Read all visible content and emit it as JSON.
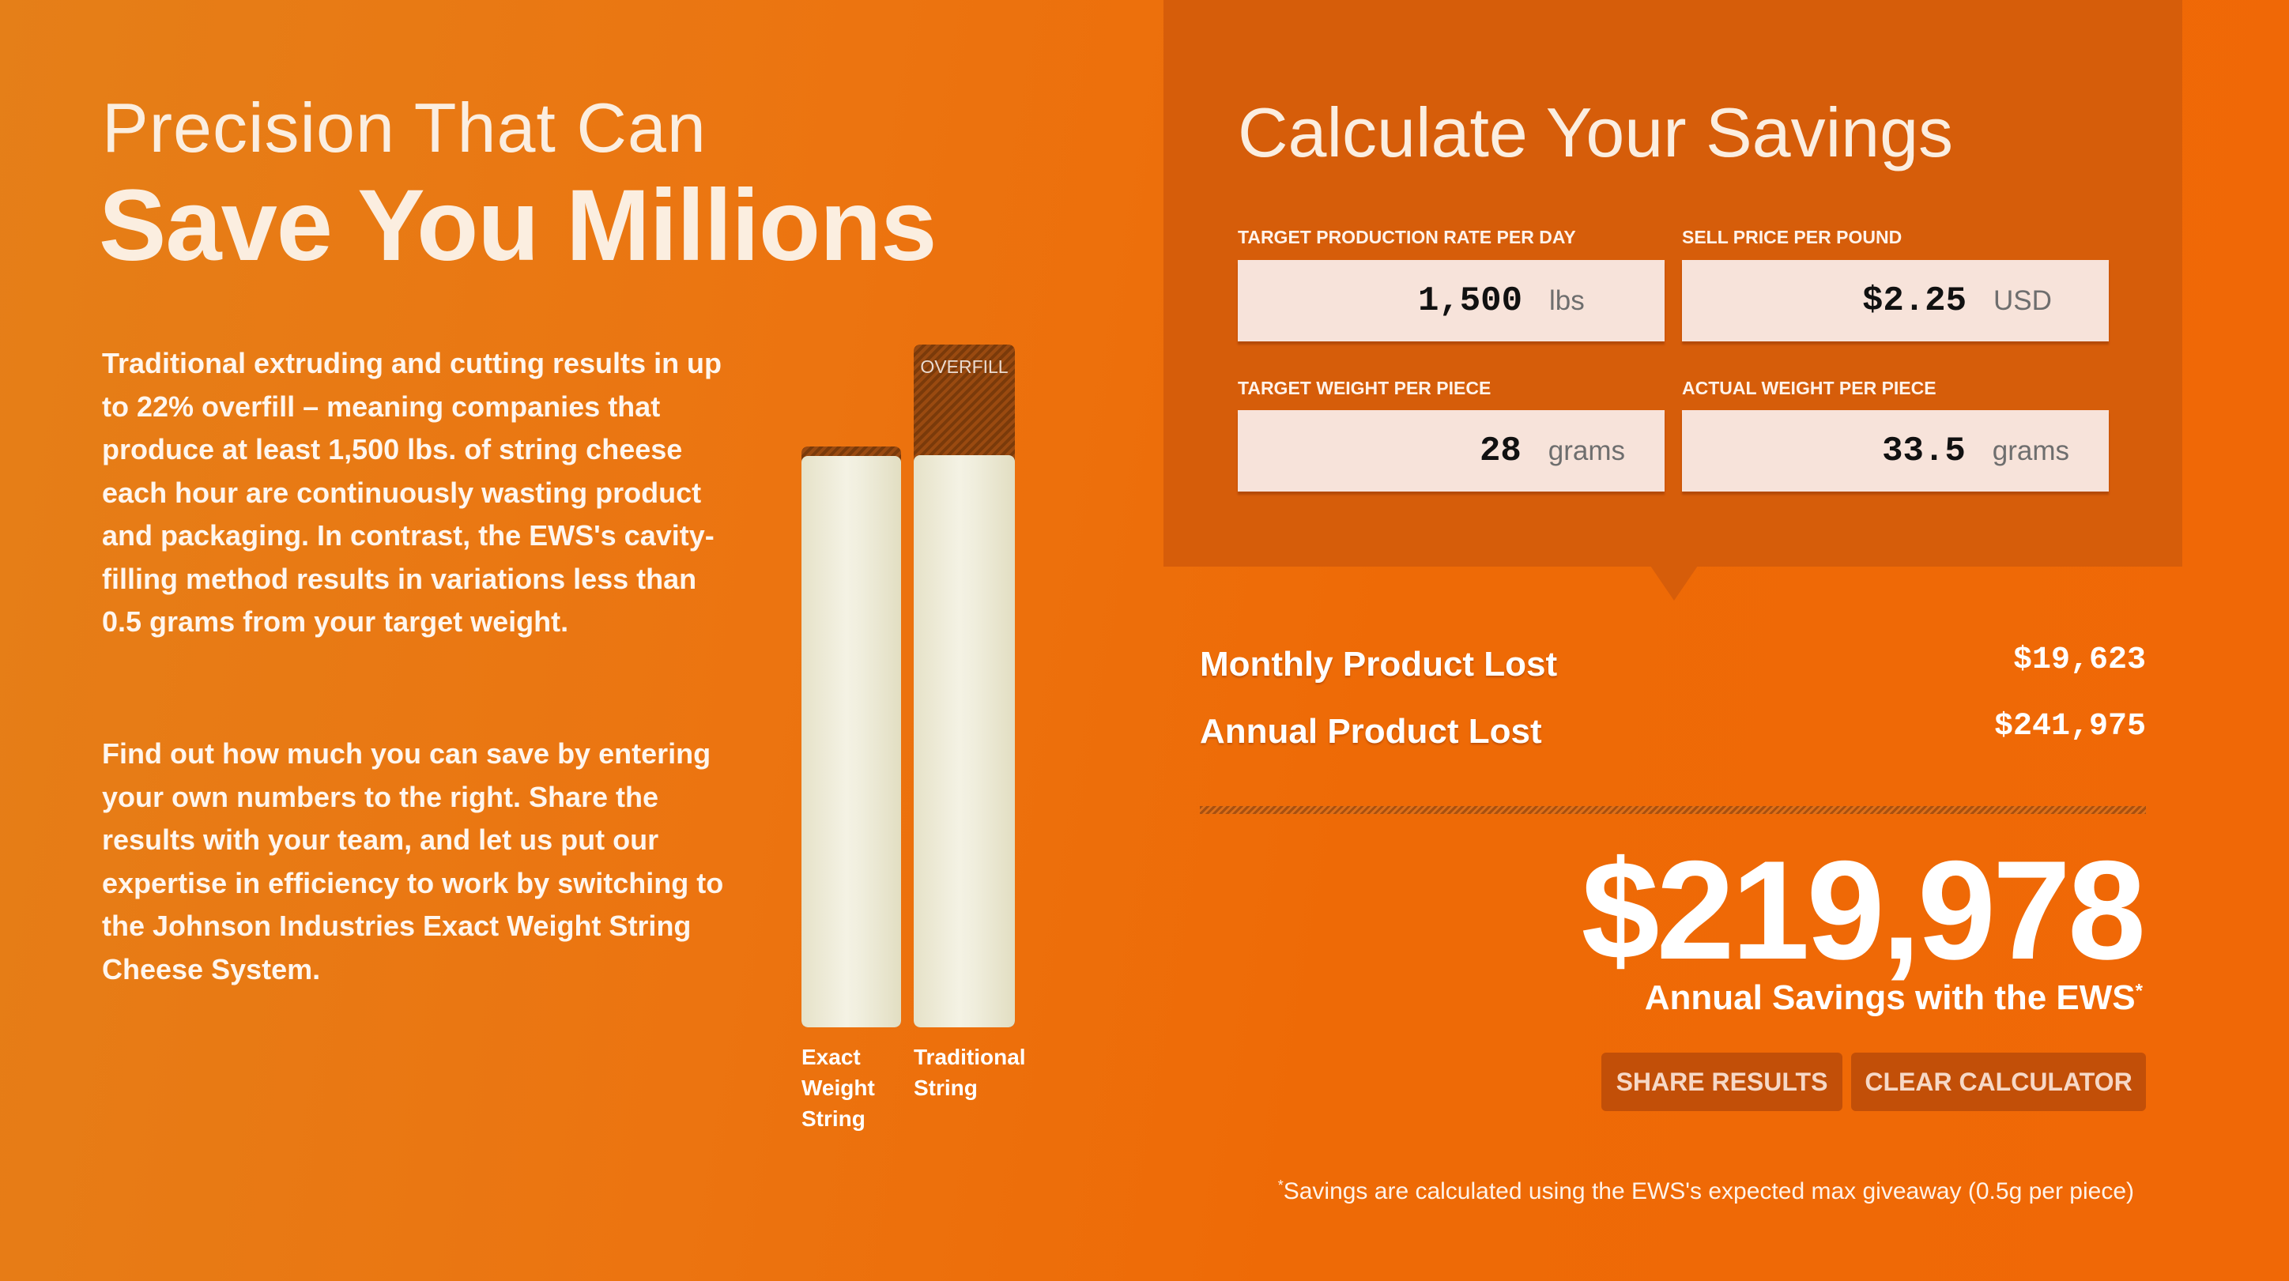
{
  "hero": {
    "title_light": "Precision That Can",
    "title_bold": "Save You Millions",
    "paragraph1": "Traditional extruding and cutting results in up to 22% overfill – meaning companies that produce at least 1,500 lbs. of string cheese each hour are continuously wasting product and packaging. In contrast, the EWS's cavity-filling method results in variations less than 0.5 grams from your target weight.",
    "paragraph2": "Find out how much you can save by entering your own numbers to the right. Share the results with your team, and let us put our expertise in efficiency to work by switching to the Johnson Industries Exact Weight String Cheese System."
  },
  "comparison": {
    "overfill_label": "OVERFILL",
    "exact_label": "Exact Weight String",
    "traditional_label": "Traditional String"
  },
  "calculator": {
    "title": "Calculate Your Savings",
    "fields": [
      {
        "label": "TARGET PRODUCTION RATE PER DAY",
        "value": "1,500",
        "unit": "lbs"
      },
      {
        "label": "SELL PRICE PER POUND",
        "value": "$2.25",
        "unit": "USD"
      },
      {
        "label": "TARGET WEIGHT PER PIECE",
        "value": "28",
        "unit": "grams"
      },
      {
        "label": "ACTUAL WEIGHT PER PIECE",
        "value": "33.5",
        "unit": "grams"
      }
    ]
  },
  "results": {
    "monthly_label": "Monthly Product Lost",
    "monthly_value": "$19,623",
    "annual_label": "Annual Product Lost",
    "annual_value": "$241,975",
    "savings_value": "$219,978",
    "savings_label": "Annual Savings with the EWS",
    "asterisk": "*",
    "share_button": "SHARE RESULTS",
    "clear_button": "CLEAR CALCULATOR",
    "footnote": "Savings are calculated using the EWS's expected max giveaway (0.5g per piece)"
  },
  "colors": {
    "background": "#ec7410",
    "panel": "#d65d0a",
    "button": "#c24f08",
    "input": "#f7e3da"
  }
}
